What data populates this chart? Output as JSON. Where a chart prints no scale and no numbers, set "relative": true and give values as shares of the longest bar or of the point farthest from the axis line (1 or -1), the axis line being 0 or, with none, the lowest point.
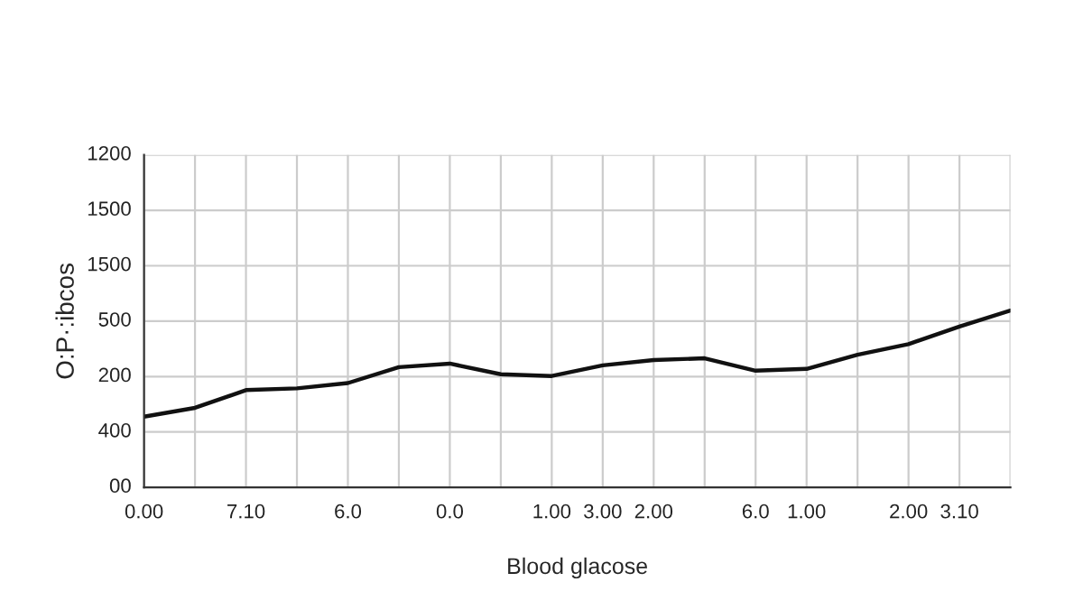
{
  "chart_data": {
    "type": "line",
    "xlabel": "Blood glacose",
    "ylabel": "O:P·:ibcos",
    "relative": true,
    "categories": [
      "0.00",
      null,
      "7.10",
      null,
      "6.0",
      null,
      "0.0",
      null,
      "1.00",
      "3.00",
      "2.00",
      null,
      "6.0",
      "1.00",
      null,
      "2.00",
      "3.10",
      null
    ],
    "series": [
      {
        "color": "#111111",
        "values": [
          0.4,
          0.45,
          0.55,
          0.56,
          0.59,
          0.68,
          0.7,
          0.64,
          0.63,
          0.69,
          0.72,
          0.73,
          0.66,
          0.67,
          0.75,
          0.81,
          0.91,
          1.0
        ]
      }
    ],
    "annotations": [
      "00",
      "400",
      "200",
      "500",
      "1500",
      "1500",
      "1200"
    ],
    "grid": true,
    "marker": "none",
    "line_style": "solid"
  }
}
